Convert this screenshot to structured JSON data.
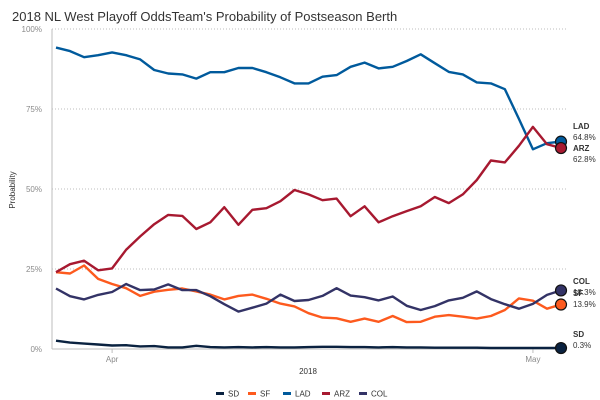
{
  "chart_data": {
    "type": "line",
    "title": "2018 NL West Playoff OddsTeam's Probability of Postseason Berth",
    "xlabel": "2018",
    "ylabel": "Probability",
    "ylim": [
      0,
      100
    ],
    "yticks": [
      {
        "value": 0,
        "label": "0%"
      },
      {
        "value": 25,
        "label": "25%"
      },
      {
        "value": 50,
        "label": "50%"
      },
      {
        "value": 75,
        "label": "75%"
      },
      {
        "value": 100,
        "label": "100%"
      }
    ],
    "xticks": [
      {
        "index": 4,
        "label": "Apr"
      },
      {
        "index": 34,
        "label": "May"
      }
    ],
    "grid": true,
    "legend_position": "bottom",
    "series": [
      {
        "name": "SD",
        "color": "#0a2240",
        "end_label": "0.3%",
        "values": [
          2.6,
          2.0,
          1.7,
          1.4,
          1.1,
          1.2,
          0.8,
          0.9,
          0.5,
          0.5,
          1.0,
          0.6,
          0.5,
          0.6,
          0.5,
          0.6,
          0.5,
          0.5,
          0.6,
          0.7,
          0.7,
          0.6,
          0.6,
          0.5,
          0.6,
          0.5,
          0.5,
          0.4,
          0.4,
          0.4,
          0.4,
          0.3,
          0.3,
          0.3,
          0.3,
          0.3,
          0.3
        ]
      },
      {
        "name": "SF",
        "color": "#fd5a1e",
        "end_label": "13.9%",
        "values": [
          24.0,
          23.6,
          26.1,
          21.9,
          20.3,
          19.0,
          16.6,
          17.9,
          18.5,
          18.9,
          18.0,
          17.0,
          15.5,
          16.6,
          17.0,
          15.7,
          14.2,
          13.3,
          11.2,
          9.8,
          9.6,
          8.5,
          9.5,
          8.5,
          10.3,
          8.4,
          8.5,
          10.1,
          10.6,
          10.1,
          9.5,
          10.3,
          12.2,
          15.8,
          15.1,
          12.6,
          13.9
        ]
      },
      {
        "name": "LAD",
        "color": "#005a9c",
        "end_label": "64.8%",
        "values": [
          94.2,
          93.1,
          91.2,
          91.8,
          92.7,
          91.8,
          90.5,
          87.2,
          86.1,
          85.8,
          84.5,
          86.5,
          86.5,
          87.8,
          87.8,
          86.5,
          84.9,
          83.0,
          83.0,
          85.1,
          85.6,
          88.2,
          89.5,
          87.7,
          88.2,
          90.0,
          92.1,
          89.3,
          86.6,
          85.8,
          83.3,
          83.0,
          81.2,
          71.9,
          62.4,
          64.3,
          64.8
        ]
      },
      {
        "name": "ARZ",
        "color": "#a71930",
        "end_label": "62.8%",
        "values": [
          24.0,
          26.5,
          27.6,
          24.6,
          25.2,
          31.0,
          35.2,
          39.0,
          41.9,
          41.6,
          37.5,
          39.6,
          44.3,
          38.8,
          43.5,
          44.0,
          46.2,
          49.7,
          48.3,
          46.5,
          47.0,
          41.5,
          44.6,
          39.6,
          41.5,
          43.1,
          44.6,
          47.5,
          45.6,
          48.3,
          52.8,
          58.9,
          58.3,
          63.5,
          69.4,
          64.0,
          62.8
        ]
      },
      {
        "name": "COL",
        "color": "#333366",
        "end_label": "18.3%",
        "values": [
          18.9,
          16.5,
          15.5,
          16.9,
          17.8,
          20.3,
          18.4,
          18.6,
          20.2,
          18.4,
          18.4,
          16.5,
          14.0,
          11.7,
          12.9,
          14.2,
          17.0,
          15.0,
          15.3,
          16.6,
          19.0,
          16.7,
          16.2,
          15.2,
          16.4,
          13.5,
          12.2,
          13.4,
          15.2,
          16.0,
          18.0,
          15.6,
          14.0,
          12.6,
          14.1,
          16.9,
          18.3
        ]
      }
    ]
  }
}
